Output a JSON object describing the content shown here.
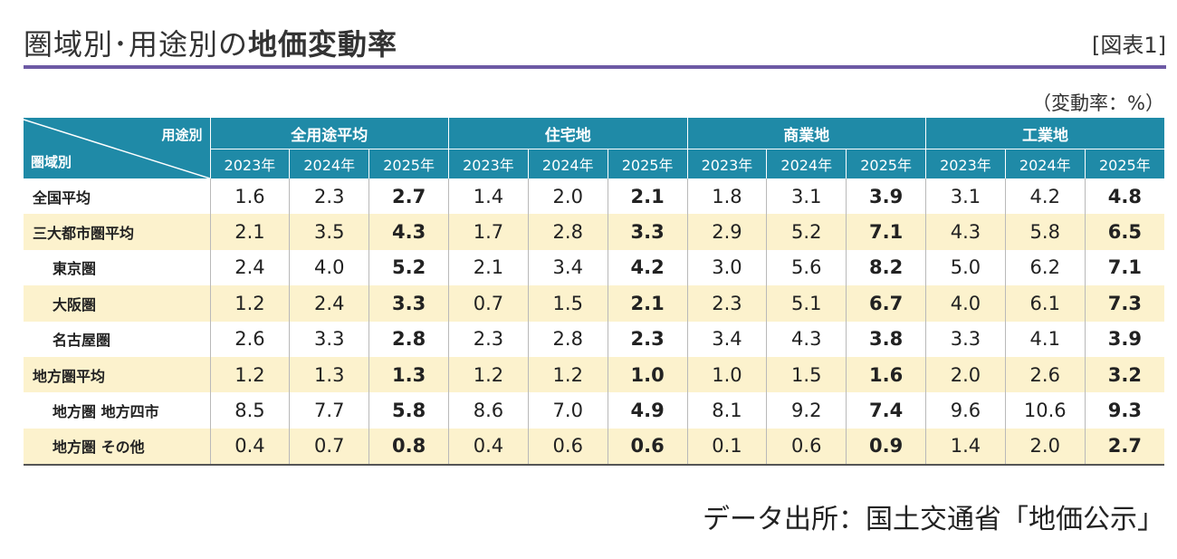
{
  "title_main": "圏域別･用途別の",
  "title_bold": "地価変動率",
  "figure_label": "[図表1]",
  "unit_note": "（変動率：%）",
  "corner_top": "用途別",
  "corner_bottom": "圏域別",
  "groups": [
    "全用途平均",
    "住宅地",
    "商業地",
    "工業地"
  ],
  "years": [
    "2023年",
    "2024年",
    "2025年"
  ],
  "rows": [
    {
      "label": "全国平均",
      "sub": false,
      "shade": false,
      "values": [
        "1.6",
        "2.3",
        "2.7",
        "1.4",
        "2.0",
        "2.1",
        "1.8",
        "3.1",
        "3.9",
        "3.1",
        "4.2",
        "4.8"
      ]
    },
    {
      "label": "三大都市圏平均",
      "sub": false,
      "shade": true,
      "values": [
        "2.1",
        "3.5",
        "4.3",
        "1.7",
        "2.8",
        "3.3",
        "2.9",
        "5.2",
        "7.1",
        "4.3",
        "5.8",
        "6.5"
      ]
    },
    {
      "label": "東京圏",
      "sub": true,
      "shade": false,
      "values": [
        "2.4",
        "4.0",
        "5.2",
        "2.1",
        "3.4",
        "4.2",
        "3.0",
        "5.6",
        "8.2",
        "5.0",
        "6.2",
        "7.1"
      ]
    },
    {
      "label": "大阪圏",
      "sub": true,
      "shade": true,
      "values": [
        "1.2",
        "2.4",
        "3.3",
        "0.7",
        "1.5",
        "2.1",
        "2.3",
        "5.1",
        "6.7",
        "4.0",
        "6.1",
        "7.3"
      ]
    },
    {
      "label": "名古屋圏",
      "sub": true,
      "shade": false,
      "values": [
        "2.6",
        "3.3",
        "2.8",
        "2.3",
        "2.8",
        "2.3",
        "3.4",
        "4.3",
        "3.8",
        "3.3",
        "4.1",
        "3.9"
      ]
    },
    {
      "label": "地方圏平均",
      "sub": false,
      "shade": true,
      "values": [
        "1.2",
        "1.3",
        "1.3",
        "1.2",
        "1.2",
        "1.0",
        "1.0",
        "1.5",
        "1.6",
        "2.0",
        "2.6",
        "3.2"
      ]
    },
    {
      "label": "地方圏 地方四市",
      "sub": true,
      "shade": false,
      "values": [
        "8.5",
        "7.7",
        "5.8",
        "8.6",
        "7.0",
        "4.9",
        "8.1",
        "9.2",
        "7.4",
        "9.6",
        "10.6",
        "9.3"
      ]
    },
    {
      "label": "地方圏 その他",
      "sub": true,
      "shade": true,
      "values": [
        "0.4",
        "0.7",
        "0.8",
        "0.4",
        "0.6",
        "0.6",
        "0.1",
        "0.6",
        "0.9",
        "1.4",
        "2.0",
        "2.7"
      ]
    }
  ],
  "source": "データ出所：国土交通省「地価公示」"
}
